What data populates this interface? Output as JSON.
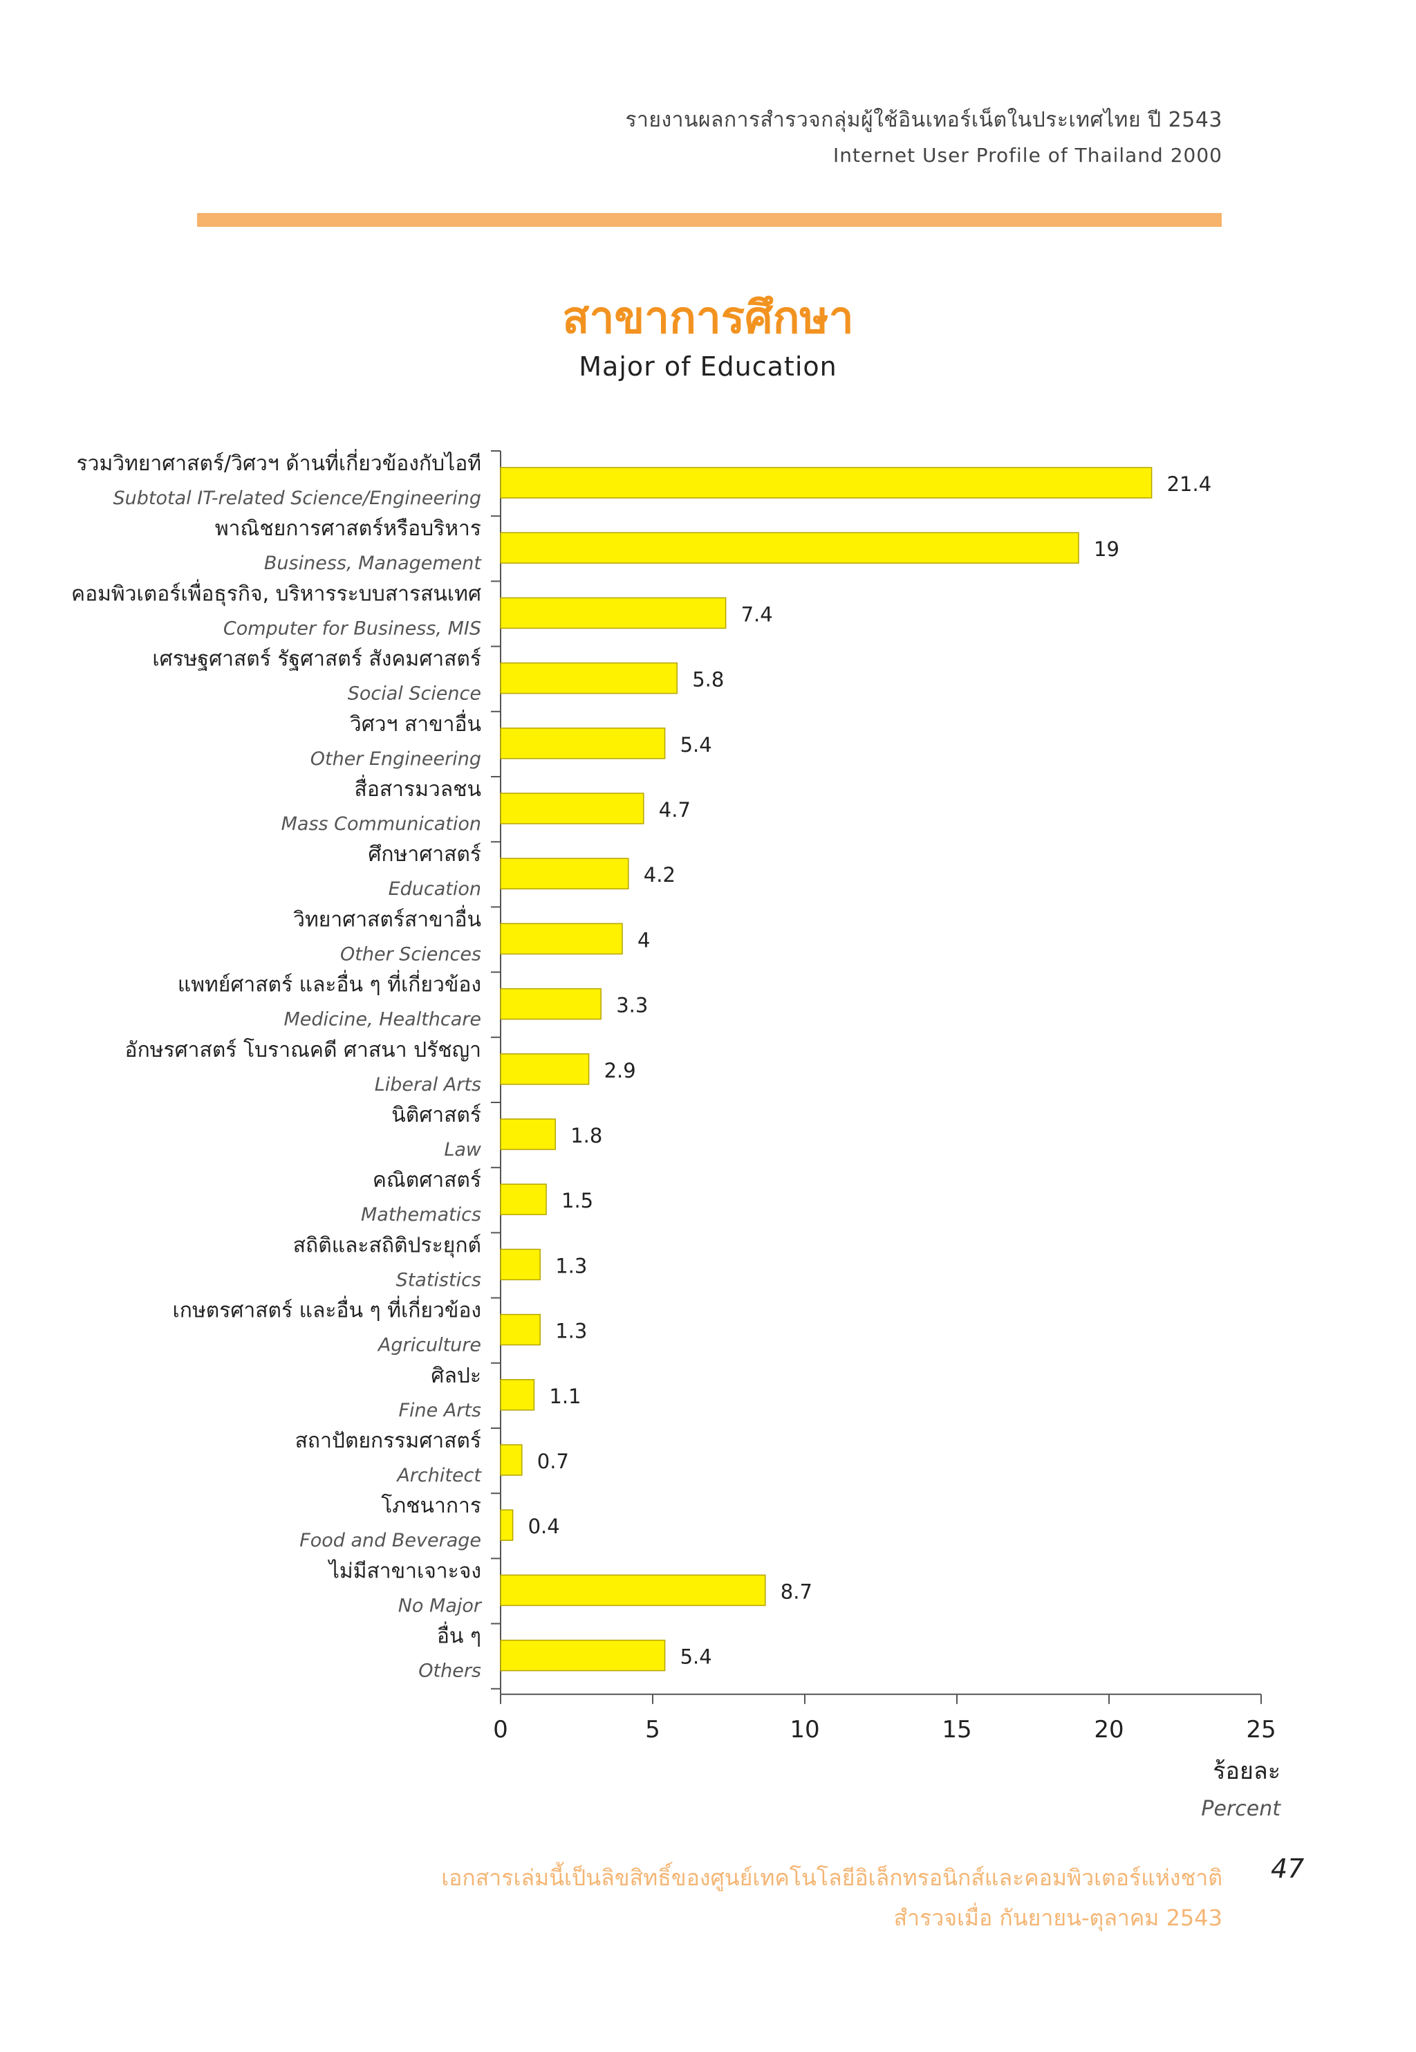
{
  "header": {
    "thai": "รายงานผลการสำรวจกลุ่มผู้ใช้อินเทอร์เน็ตในประเทศไทย ปี 2543",
    "english": "Internet User Profile of Thailand 2000"
  },
  "title": {
    "thai": "สาขาการศึกษา",
    "english": "Major of Education"
  },
  "colors": {
    "accent_bar": "#f7b36b",
    "title": "#f29321",
    "bar_fill": "#fff200",
    "bar_stroke": "#b5a300",
    "footer": "#f4b574"
  },
  "chart_data": {
    "type": "bar",
    "orientation": "horizontal",
    "title": "Major of Education",
    "xlabel_thai": "ร้อยละ",
    "xlabel": "Percent",
    "xlim": [
      0,
      25
    ],
    "xticks": [
      0,
      5,
      10,
      15,
      20,
      25
    ],
    "grid": false,
    "categories": [
      {
        "thai": "รวมวิทยาศาสตร์/วิศวฯ ด้านที่เกี่ยวข้องกับไอที",
        "english": "Subtotal  IT-related Science/Engineering",
        "value": 21.4,
        "label": "21.4"
      },
      {
        "thai": "พาณิชยการศาสตร์หรือบริหาร",
        "english": "Business, Management",
        "value": 19,
        "label": "19"
      },
      {
        "thai": "คอมพิวเตอร์เพื่อธุรกิจ, บริหารระบบสารสนเทศ",
        "english": "Computer for Business, MIS",
        "value": 7.4,
        "label": "7.4"
      },
      {
        "thai": "เศรษฐศาสตร์ รัฐศาสตร์ สังคมศาสตร์",
        "english": "Social Science",
        "value": 5.8,
        "label": "5.8"
      },
      {
        "thai": "วิศวฯ สาขาอื่น",
        "english": "Other Engineering",
        "value": 5.4,
        "label": "5.4"
      },
      {
        "thai": "สื่อสารมวลชน",
        "english": "Mass Communication",
        "value": 4.7,
        "label": "4.7"
      },
      {
        "thai": "ศึกษาศาสตร์",
        "english": "Education",
        "value": 4.2,
        "label": "4.2"
      },
      {
        "thai": "วิทยาศาสตร์สาขาอื่น",
        "english": "Other Sciences",
        "value": 4,
        "label": "4"
      },
      {
        "thai": "แพทย์ศาสตร์ และอื่น ๆ ที่เกี่ยวข้อง",
        "english": "Medicine, Healthcare",
        "value": 3.3,
        "label": "3.3"
      },
      {
        "thai": "อักษรศาสตร์ โบราณคดี ศาสนา ปรัชญา",
        "english": "Liberal Arts",
        "value": 2.9,
        "label": "2.9"
      },
      {
        "thai": "นิติศาสตร์",
        "english": "Law",
        "value": 1.8,
        "label": "1.8"
      },
      {
        "thai": "คณิตศาสตร์",
        "english": "Mathematics",
        "value": 1.5,
        "label": "1.5"
      },
      {
        "thai": "สถิติและสถิติประยุกต์",
        "english": "Statistics",
        "value": 1.3,
        "label": "1.3"
      },
      {
        "thai": "เกษตรศาสตร์ และอื่น ๆ ที่เกี่ยวข้อง",
        "english": "Agriculture",
        "value": 1.3,
        "label": "1.3"
      },
      {
        "thai": "ศิลปะ",
        "english": "Fine Arts",
        "value": 1.1,
        "label": "1.1"
      },
      {
        "thai": "สถาปัตยกรรมศาสตร์",
        "english": "Architect",
        "value": 0.7,
        "label": "0.7"
      },
      {
        "thai": "โภชนาการ",
        "english": "Food and Beverage",
        "value": 0.4,
        "label": "0.4"
      },
      {
        "thai": "ไม่มีสาขาเจาะจง",
        "english": "No Major",
        "value": 8.7,
        "label": "8.7"
      },
      {
        "thai": "อื่น ๆ",
        "english": "Others",
        "value": 5.4,
        "label": "5.4"
      }
    ]
  },
  "footer": {
    "line1": "เอกสารเล่มนี้เป็นลิขสิทธิ์ของศูนย์เทคโนโลยีอิเล็กทรอนิกส์และคอมพิวเตอร์แห่งชาติ",
    "line2": "สำรวจเมื่อ กันยายน-ตุลาคม 2543",
    "page_number": "47"
  }
}
